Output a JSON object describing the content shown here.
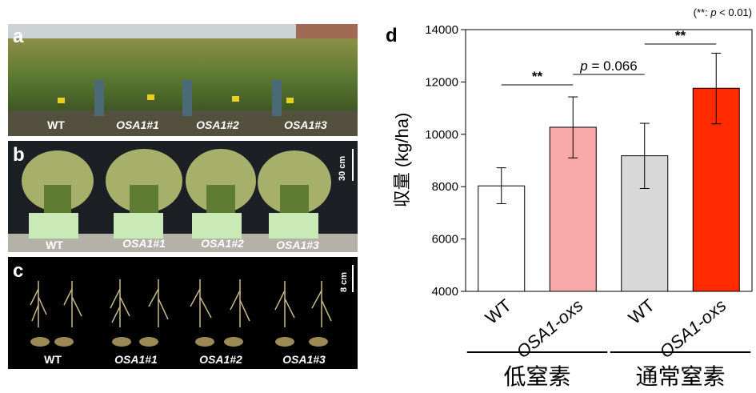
{
  "figure": {
    "significance_note": "(**: p < 0.01)",
    "significance_note_prefix": "(**: ",
    "significance_note_p": "p",
    "significance_note_suffix": " < 0.01)"
  },
  "panel_a": {
    "letter": "a",
    "labels": [
      "WT",
      "OSA1#1",
      "OSA1#2",
      "OSA1#3"
    ]
  },
  "panel_b": {
    "letter": "b",
    "scale": "30 cm",
    "labels": [
      "WT",
      "OSA1#1",
      "OSA1#2",
      "OSA1#3"
    ]
  },
  "panel_c": {
    "letter": "c",
    "scale": "8 cm",
    "labels": [
      "WT",
      "OSA1#1",
      "OSA1#2",
      "OSA1#3"
    ]
  },
  "chart_data": {
    "type": "bar",
    "panel_letter": "d",
    "ylabel": "収量 (kg/ha)",
    "ylim": [
      4000,
      14000
    ],
    "yticks": [
      4000,
      6000,
      8000,
      10000,
      12000,
      14000
    ],
    "categories": [
      "WT",
      "OSA1-oxs",
      "WT",
      "OSA1-oxs"
    ],
    "values": [
      8030,
      10270,
      9180,
      11760
    ],
    "error_low": [
      7350,
      9100,
      7930,
      10400
    ],
    "error_high": [
      8720,
      11430,
      10420,
      13100
    ],
    "bar_colors": [
      "#ffffff",
      "#f8a8a8",
      "#d8d8d8",
      "#ff2a00"
    ],
    "groups": [
      {
        "label": "低窒素",
        "categories": [
          0,
          1
        ]
      },
      {
        "label": "通常窒素",
        "categories": [
          2,
          3
        ]
      }
    ],
    "annotations": [
      {
        "between": [
          0,
          1
        ],
        "text": "**"
      },
      {
        "between": [
          1,
          2
        ],
        "text": "p = 0.066"
      },
      {
        "between": [
          2,
          3
        ],
        "text": "**"
      }
    ]
  }
}
